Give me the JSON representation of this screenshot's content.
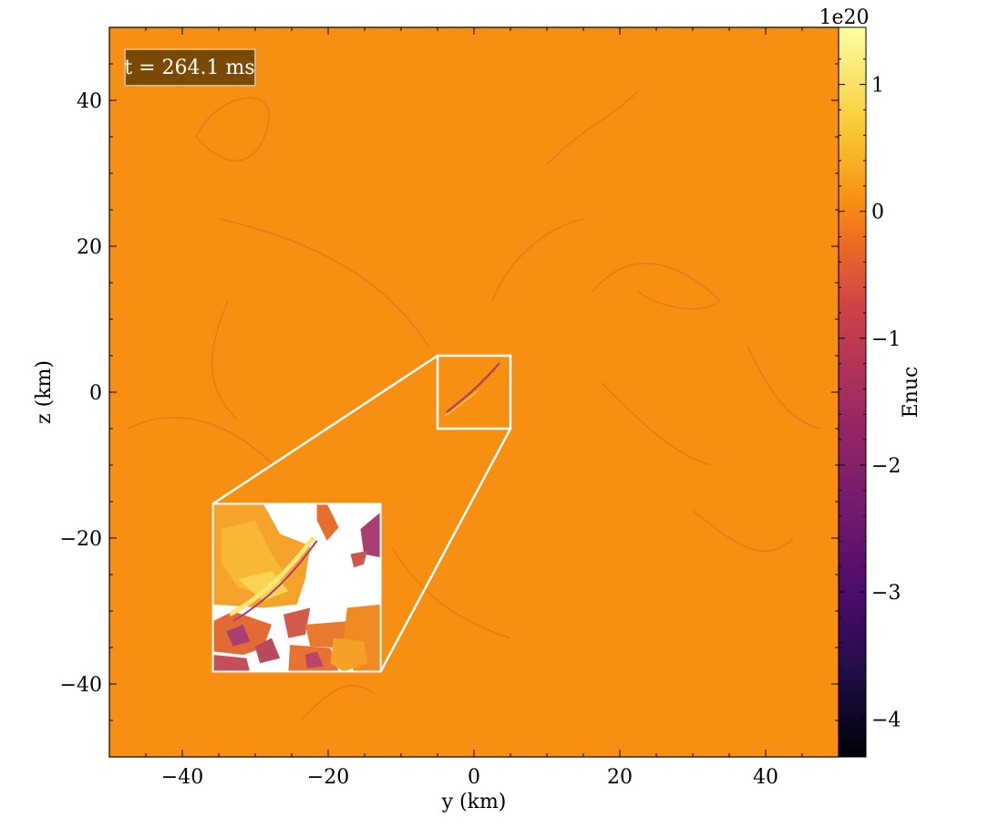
{
  "chart_data": {
    "type": "heatmap",
    "title": "",
    "annotation": "t = 264.1 ms",
    "xlabel": "y  (km)",
    "ylabel": "z  (km)",
    "xlim": [
      -50,
      50
    ],
    "ylim": [
      -50,
      50
    ],
    "xticks": [
      -40,
      -20,
      0,
      20,
      40
    ],
    "yticks": [
      -40,
      -20,
      0,
      20,
      40
    ],
    "xtick_labels": [
      "−40",
      "−20",
      "0",
      "20",
      "40"
    ],
    "ytick_labels": [
      "−40",
      "−20",
      "0",
      "20",
      "40"
    ],
    "colorbar": {
      "label": "Enuc",
      "scale_label": "1e20",
      "range": [
        -4.3,
        1.45
      ],
      "ticks": [
        1,
        0,
        -1,
        -2,
        -3,
        -4
      ],
      "tick_labels": [
        "1",
        "0",
        "−1",
        "−2",
        "−3",
        "−4"
      ],
      "colormap": "inferno"
    },
    "zoom_region": {
      "x": [
        -5,
        5
      ],
      "y": [
        -5,
        5
      ]
    },
    "inset_extent": {
      "x": [
        -35.8,
        -12.8
      ],
      "y": [
        -38.3,
        -15.3
      ]
    },
    "background_value": 0.05,
    "colors": {
      "field": "#f68f12",
      "filament": "#d9621c",
      "annotation_box": "#7a4a05",
      "inset_white": "#ffffff",
      "inset_purple": "#a83e72"
    }
  }
}
